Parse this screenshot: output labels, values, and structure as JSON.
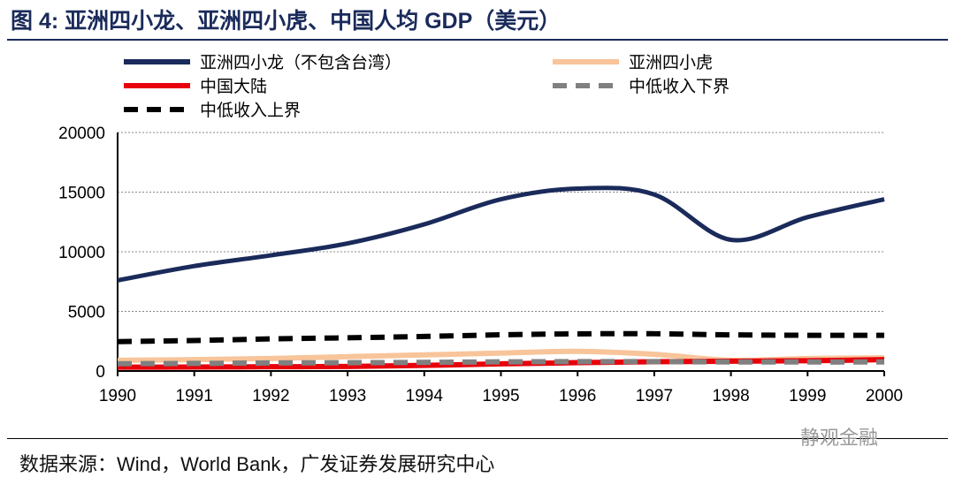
{
  "title": "图 4:  亚洲四小龙、亚洲四小虎、中国人均 GDP（美元）",
  "source": "数据来源：Wind，World Bank，广发证券发展研究中心",
  "watermark": "静观金融",
  "chart_data": {
    "type": "line",
    "title": "亚洲四小龙、亚洲四小虎、中国人均 GDP（美元）",
    "xlabel": "",
    "ylabel": "",
    "x": [
      "1990",
      "1991",
      "1992",
      "1993",
      "1994",
      "1995",
      "1996",
      "1997",
      "1998",
      "1999",
      "2000"
    ],
    "ylim": [
      0,
      20000
    ],
    "yticks": [
      "0",
      "5000",
      "10000",
      "15000",
      "20000"
    ],
    "grid": true,
    "legend_position": "top",
    "series": [
      {
        "name": "亚洲四小龙（不包含台湾）",
        "color": "#1a2a5a",
        "dash": false,
        "values": [
          7600,
          8800,
          9700,
          10700,
          12300,
          14400,
          15300,
          14800,
          11000,
          12900,
          14400
        ]
      },
      {
        "name": "亚洲四小虎",
        "color": "#f8c49a",
        "dash": false,
        "values": [
          900,
          950,
          1050,
          1200,
          1350,
          1500,
          1650,
          1400,
          900,
          1050,
          1100
        ]
      },
      {
        "name": "中国大陆",
        "color": "#e8000b",
        "dash": false,
        "values": [
          320,
          330,
          360,
          380,
          470,
          600,
          700,
          780,
          820,
          860,
          950
        ]
      },
      {
        "name": "中低收入下界",
        "color": "#808080",
        "dash": true,
        "values": [
          610,
          635,
          675,
          695,
          725,
          765,
          785,
          785,
          760,
          755,
          755
        ]
      },
      {
        "name": "中低收入上界",
        "color": "#000000",
        "dash": true,
        "values": [
          2465,
          2555,
          2695,
          2785,
          2895,
          3035,
          3115,
          3125,
          3030,
          2995,
          2995
        ]
      }
    ]
  }
}
